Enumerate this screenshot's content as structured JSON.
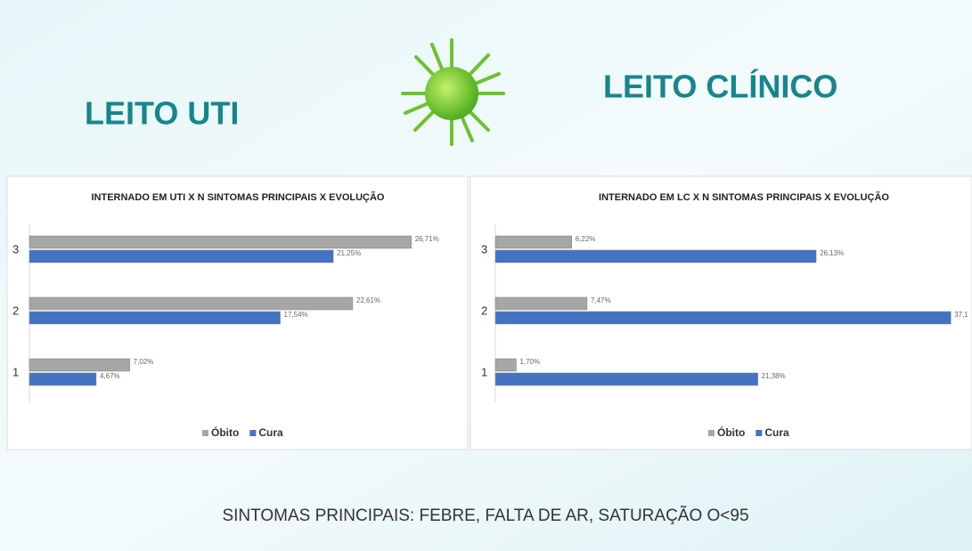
{
  "slide": {
    "left_heading": "LEITO UTI",
    "right_heading": "LEITO CLÍNICO",
    "footer": "SINTOMAS PRINCIPAIS: FEBRE, FALTA DE AR, SATURAÇÃO O<95"
  },
  "chart_data": [
    {
      "type": "bar",
      "orientation": "horizontal",
      "title": "INTERNADO  EM UTI X N SINTOMAS PRINCIPAIS X EVOLUÇÃO",
      "categories": [
        "3",
        "2",
        "1"
      ],
      "legend": "bottom",
      "series": [
        {
          "name": "Óbito",
          "color": "#a6a6a6",
          "values": [
            26.71,
            22.61,
            7.02
          ],
          "value_labels": [
            "26,71%",
            "22,61%",
            "7,02%"
          ]
        },
        {
          "name": "Cura",
          "color": "#4472c4",
          "values": [
            21.25,
            17.54,
            4.67
          ],
          "value_labels": [
            "21,25%",
            "17,54%",
            "4,67%"
          ]
        }
      ]
    },
    {
      "type": "bar",
      "orientation": "horizontal",
      "title": "INTERNADO EM LC X N SINTOMAS PRINCIPAIS X EVOLUÇÃO",
      "categories": [
        "3",
        "2",
        "1"
      ],
      "legend": "bottom",
      "series": [
        {
          "name": "Óbito",
          "color": "#a6a6a6",
          "values": [
            6.22,
            7.47,
            1.7
          ],
          "value_labels": [
            "6,22%",
            "7,47%",
            "1,70%"
          ]
        },
        {
          "name": "Cura",
          "color": "#4472c4",
          "values": [
            26.13,
            37.1,
            21.38
          ],
          "value_labels": [
            "26,13%",
            "37,1",
            "21,38%"
          ]
        }
      ]
    }
  ]
}
